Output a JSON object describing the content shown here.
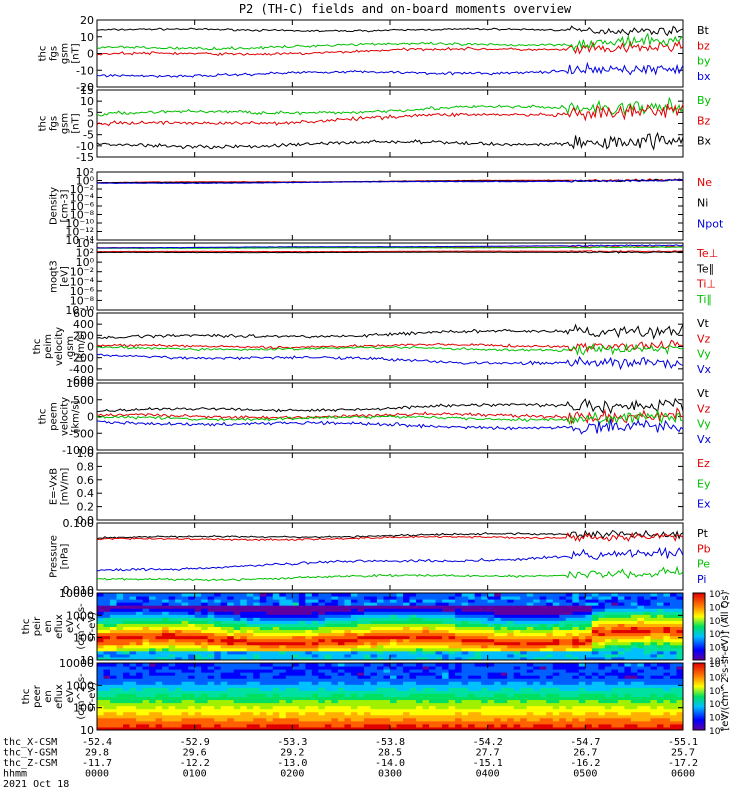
{
  "title": "P2 (TH-C) fields and on-board moments overview",
  "colors": {
    "black": "#000000",
    "red": "#e00000",
    "green": "#00c000",
    "blue": "#0000e0"
  },
  "chart_data": [
    {
      "type": "line",
      "name": "thc_fgs_gsm",
      "ylabel_lines": [
        "thc",
        "fgs",
        "gsm",
        "[nT]"
      ],
      "yticks": [
        "20",
        "10",
        "0",
        "-10",
        "-20"
      ],
      "ylim": [
        -20,
        20
      ],
      "series": [
        {
          "name": "Bt",
          "color": "black",
          "start": 14,
          "end": 14,
          "noise": 0.8
        },
        {
          "name": "bz",
          "color": "red",
          "start": -1,
          "end": 4,
          "noise": 1.2
        },
        {
          "name": "by",
          "color": "green",
          "start": 3,
          "end": 7,
          "noise": 1.2
        },
        {
          "name": "bx",
          "color": "blue",
          "start": -13,
          "end": -10,
          "noise": 1.2
        }
      ]
    },
    {
      "type": "line",
      "name": "thc_fgs_gsm_2",
      "ylabel_lines": [
        "thc",
        "fgs",
        "gsm",
        "[nT]"
      ],
      "yticks": [
        "15",
        "10",
        "5",
        "0",
        "-5",
        "-10",
        "-15"
      ],
      "ylim": [
        -15,
        15
      ],
      "series": [
        {
          "name": "By",
          "color": "green",
          "start": 4,
          "end": 8,
          "noise": 1.2
        },
        {
          "name": "Bz",
          "color": "red",
          "start": -1,
          "end": 6,
          "noise": 1.2
        },
        {
          "name": "Bx",
          "color": "black",
          "start": -10,
          "end": -8,
          "noise": 1.2
        }
      ]
    },
    {
      "type": "line",
      "name": "density",
      "ylabel_lines": [
        "Density",
        "[cm-3]"
      ],
      "yticks": [
        "10²",
        "10⁰",
        "10⁻²",
        "10⁻⁴",
        "10⁻⁶",
        "10⁻⁸",
        "10⁻¹⁰",
        "10⁻¹²",
        "10⁻¹⁴"
      ],
      "log": true,
      "ylim": [
        -14,
        2
      ],
      "series": [
        {
          "name": "Ne",
          "color": "red",
          "start": -0.5,
          "end": 0.2,
          "noise": 0.1
        },
        {
          "name": "Ni",
          "color": "black",
          "start": -0.6,
          "end": 0.1,
          "noise": 0.1
        },
        {
          "name": "Npot",
          "color": "blue",
          "start": -0.7,
          "end": 0.0,
          "noise": 0.1
        }
      ]
    },
    {
      "type": "line",
      "name": "moqt3",
      "ylabel_lines": [
        "moqt3",
        "[eV]"
      ],
      "yticks": [
        "10⁴",
        "10²",
        "10⁰",
        "10⁻²",
        "10⁻⁴",
        "10⁻⁶",
        "10⁻⁸",
        "10⁻¹⁰"
      ],
      "log": true,
      "ylim": [
        -10,
        4
      ],
      "series": [
        {
          "name": "Te⊥",
          "color": "red",
          "start": 2.2,
          "end": 2.3,
          "noise": 0.05
        },
        {
          "name": "Te∥",
          "color": "black",
          "start": 2.0,
          "end": 2.1,
          "noise": 0.05
        },
        {
          "name": "Ti⊥",
          "color": "red",
          "start": 3.0,
          "end": 3.2,
          "noise": 0.05
        },
        {
          "name": "Ti∥",
          "color": "green",
          "start": 2.9,
          "end": 3.1,
          "noise": 0.05
        },
        {
          "name": "",
          "color": "blue",
          "start": 3.0,
          "end": 3.5,
          "noise": 0.05
        }
      ]
    },
    {
      "type": "line",
      "name": "thc_peim_velocity",
      "ylabel_lines": [
        "thc",
        "peim",
        "velocity",
        "gsm",
        "[km/s]"
      ],
      "yticks": [
        "600",
        "400",
        "200",
        "0",
        "-200",
        "-400",
        "-600"
      ],
      "ylim": [
        -600,
        600
      ],
      "series": [
        {
          "name": "Vt",
          "color": "black",
          "start": 150,
          "end": 300,
          "noise": 40
        },
        {
          "name": "Vz",
          "color": "red",
          "start": 0,
          "end": 20,
          "noise": 30
        },
        {
          "name": "Vy",
          "color": "green",
          "start": -30,
          "end": -50,
          "noise": 30
        },
        {
          "name": "Vx",
          "color": "blue",
          "start": -150,
          "end": -330,
          "noise": 40
        }
      ]
    },
    {
      "type": "line",
      "name": "thc_peem_velocity",
      "ylabel_lines": [
        "thc",
        "peem",
        "velocity",
        "[km/s]"
      ],
      "yticks": [
        "1000",
        "500",
        "0",
        "-500",
        "-1000"
      ],
      "ylim": [
        -1000,
        1000
      ],
      "series": [
        {
          "name": "Vt",
          "color": "black",
          "start": 150,
          "end": 380,
          "noise": 70
        },
        {
          "name": "Vz",
          "color": "red",
          "start": 0,
          "end": 40,
          "noise": 70
        },
        {
          "name": "Vy",
          "color": "green",
          "start": -40,
          "end": -60,
          "noise": 60
        },
        {
          "name": "Vx",
          "color": "blue",
          "start": -150,
          "end": -360,
          "noise": 70
        }
      ]
    },
    {
      "type": "line",
      "name": "e_field",
      "ylabel_lines": [
        "E=-VxB",
        "[mV/m]"
      ],
      "yticks": [
        "1.0",
        "0.8",
        "0.6",
        "0.4",
        "0.2",
        "0.0"
      ],
      "ylim": [
        0,
        1
      ],
      "series": [
        {
          "name": "Ez",
          "color": "red",
          "start": null,
          "end": null,
          "noise": 0
        },
        {
          "name": "Ey",
          "color": "green",
          "start": null,
          "end": null,
          "noise": 0
        },
        {
          "name": "Ex",
          "color": "blue",
          "start": null,
          "end": null,
          "noise": 0
        }
      ]
    },
    {
      "type": "line",
      "name": "pressure",
      "ylabel_lines": [
        "Pressure",
        "[nPa]"
      ],
      "yticks": [
        "0.100",
        "0.010"
      ],
      "log": true,
      "ylim": [
        -2.6,
        -0.6
      ],
      "series": [
        {
          "name": "Pt",
          "color": "black",
          "start": -1.05,
          "end": -0.9,
          "noise": 0.04
        },
        {
          "name": "Pb",
          "color": "red",
          "start": -1.1,
          "end": -1.0,
          "noise": 0.04
        },
        {
          "name": "Pe",
          "color": "green",
          "start": -2.3,
          "end": -2.1,
          "noise": 0.05
        },
        {
          "name": "Pi",
          "color": "blue",
          "start": -2.0,
          "end": -1.5,
          "noise": 0.06
        }
      ]
    },
    {
      "type": "heatmap",
      "name": "thc_peir_en_eflux",
      "ylabel_lines": [
        "thc",
        "peir",
        "en",
        "eflux",
        "eV",
        "(cm^2-s-",
        "sr-eV)"
      ],
      "yticks": [
        "10000",
        "1000",
        "100",
        "10"
      ],
      "ylim": [
        1,
        4.6
      ]
    },
    {
      "type": "heatmap",
      "name": "thc_peer_en_eflux",
      "ylabel_lines": [
        "thc",
        "peer",
        "en",
        "eflux",
        "eV",
        "(cm^2-s-",
        "sr-eV)"
      ],
      "yticks": [
        "10000",
        "1000",
        "100",
        "10"
      ],
      "ylim": [
        1,
        4.6
      ]
    }
  ],
  "colorbar": {
    "label": "[eV/(cm^2-s-sr-eV)] (All Qs)",
    "ticks": [
      "10⁷",
      "10⁶",
      "10⁵",
      "10⁴",
      "10³",
      "10²",
      "10⁷",
      "10⁶",
      "10⁵",
      "10⁴",
      "10³",
      "10²"
    ]
  },
  "xaxis": {
    "rows": [
      {
        "label": "thc_X-CSM",
        "values": [
          "-52.4",
          "-52.9",
          "-53.3",
          "-53.8",
          "-54.2",
          "-54.7",
          "-55.1"
        ]
      },
      {
        "label": "thc_Y-GSM",
        "values": [
          "29.8",
          "29.6",
          "29.2",
          "28.5",
          "27.7",
          "26.7",
          "25.7"
        ]
      },
      {
        "label": "thc_Z-CSM",
        "values": [
          "-11.7",
          "-12.2",
          "-13.0",
          "-14.0",
          "-15.1",
          "-16.2",
          "-17.2"
        ]
      },
      {
        "label": "hhmm",
        "values": [
          "0000",
          "0100",
          "0200",
          "0300",
          "0400",
          "0500",
          "0600"
        ]
      }
    ],
    "date": "2021 Oct 18"
  }
}
